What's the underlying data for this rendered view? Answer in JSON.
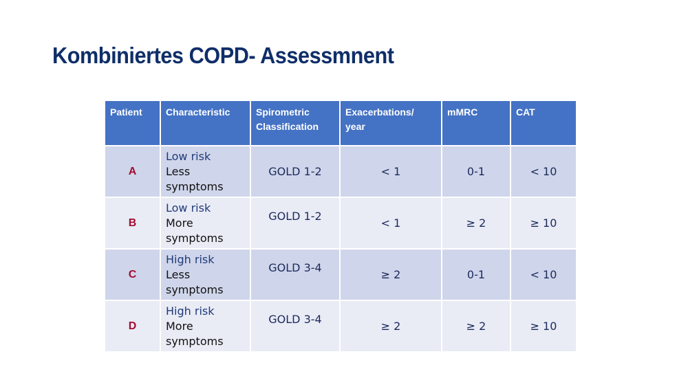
{
  "title": "Kombiniertes COPD- Assessmnent",
  "headers": {
    "patient": "Patient",
    "characteristic": "Characteristic",
    "spirometric_line1": "Spirometric",
    "spirometric_line2": "Classification",
    "exacerbations_line1": "Exacerbations/",
    "exacerbations_line2": "year",
    "mmrc": "mMRC",
    "cat": "CAT"
  },
  "rows": [
    {
      "patient": "A",
      "risk": "Low risk",
      "symptoms": "Less symptoms",
      "spirometric": "GOLD 1-2",
      "exacerbations": "< 1",
      "mmrc": "0-1",
      "cat": "< 10"
    },
    {
      "patient": "B",
      "risk": "Low risk",
      "symptoms": "More symptoms",
      "spirometric": "GOLD 1-2",
      "exacerbations": "< 1",
      "mmrc": "≥ 2",
      "cat": "≥ 10"
    },
    {
      "patient": "C",
      "risk": "High risk",
      "symptoms": "Less symptoms",
      "spirometric": "GOLD 3-4",
      "exacerbations": "≥ 2",
      "mmrc": "0-1",
      "cat": "< 10"
    },
    {
      "patient": "D",
      "risk": "High risk",
      "symptoms": "More symptoms",
      "spirometric": "GOLD 3-4",
      "exacerbations": "≥ 2",
      "mmrc": "≥ 2",
      "cat": "≥ 10"
    }
  ],
  "colors": {
    "title": "#0f2e69",
    "header_bg": "#4472c4",
    "row_dark": "#cfd5ea",
    "row_light": "#e9ebf5",
    "patient_letter": "#a30d2f"
  }
}
